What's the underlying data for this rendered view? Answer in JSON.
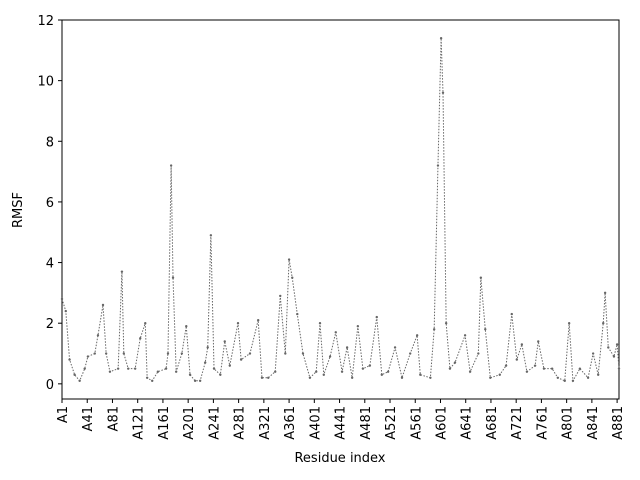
{
  "chart_data": {
    "type": "line",
    "xlabel": "Residue index",
    "ylabel": "RMSF",
    "x": [
      1,
      7,
      13,
      21,
      29,
      37,
      42,
      53,
      58,
      66,
      71,
      77,
      90,
      96,
      99,
      106,
      117,
      125,
      133,
      136,
      144,
      153,
      166,
      169,
      174,
      177,
      182,
      191,
      198,
      204,
      212,
      220,
      228,
      232,
      237,
      242,
      252,
      259,
      267,
      280,
      285,
      299,
      312,
      318,
      328,
      339,
      347,
      355,
      361,
      366,
      374,
      383,
      394,
      404,
      410,
      416,
      426,
      435,
      445,
      453,
      461,
      470,
      478,
      489,
      500,
      508,
      518,
      529,
      540,
      553,
      564,
      569,
      585,
      591,
      597,
      602,
      605,
      610,
      616,
      624,
      640,
      648,
      661,
      665,
      672,
      680,
      695,
      705,
      714,
      722,
      730,
      738,
      751,
      756,
      765,
      778,
      787,
      798,
      805,
      811,
      822,
      835,
      843,
      851,
      859,
      862,
      867,
      876,
      881,
      884
    ],
    "series": [
      {
        "name": "RMSF",
        "color": "#666666",
        "values": [
          2.8,
          2.4,
          0.8,
          0.3,
          0.1,
          0.5,
          0.9,
          1.0,
          1.6,
          2.6,
          1.0,
          0.4,
          0.5,
          3.7,
          1.0,
          0.5,
          0.5,
          1.5,
          2.0,
          0.2,
          0.1,
          0.4,
          0.5,
          1.0,
          7.2,
          3.5,
          0.4,
          1.0,
          1.9,
          0.3,
          0.1,
          0.1,
          0.7,
          1.2,
          4.9,
          0.5,
          0.3,
          1.4,
          0.6,
          2.0,
          0.8,
          1.0,
          2.1,
          0.2,
          0.2,
          0.4,
          2.9,
          1.0,
          4.1,
          3.5,
          2.3,
          1.0,
          0.2,
          0.4,
          2.0,
          0.3,
          0.9,
          1.7,
          0.4,
          1.2,
          0.2,
          1.9,
          0.5,
          0.6,
          2.2,
          0.3,
          0.4,
          1.2,
          0.2,
          1.0,
          1.6,
          0.3,
          0.2,
          1.8,
          7.2,
          11.4,
          9.6,
          2.0,
          0.5,
          0.7,
          1.6,
          0.4,
          1.0,
          3.5,
          1.8,
          0.2,
          0.3,
          0.6,
          2.3,
          0.8,
          1.3,
          0.4,
          0.6,
          1.4,
          0.5,
          0.5,
          0.2,
          0.1,
          2.0,
          0.1,
          0.5,
          0.2,
          1.0,
          0.3,
          2.0,
          3.0,
          1.2,
          0.9,
          1.3,
          0.5
        ]
      }
    ],
    "xlim": [
      1,
      884
    ],
    "ylim": [
      -0.5,
      12
    ],
    "xticks": [
      {
        "value": 1,
        "label": "A1"
      },
      {
        "value": 41,
        "label": "A41"
      },
      {
        "value": 81,
        "label": "A81"
      },
      {
        "value": 121,
        "label": "A121"
      },
      {
        "value": 161,
        "label": "A161"
      },
      {
        "value": 201,
        "label": "A201"
      },
      {
        "value": 241,
        "label": "A241"
      },
      {
        "value": 281,
        "label": "A281"
      },
      {
        "value": 321,
        "label": "A321"
      },
      {
        "value": 361,
        "label": "A361"
      },
      {
        "value": 401,
        "label": "A401"
      },
      {
        "value": 441,
        "label": "A441"
      },
      {
        "value": 481,
        "label": "A481"
      },
      {
        "value": 521,
        "label": "A521"
      },
      {
        "value": 561,
        "label": "A561"
      },
      {
        "value": 601,
        "label": "A601"
      },
      {
        "value": 641,
        "label": "A641"
      },
      {
        "value": 681,
        "label": "A681"
      },
      {
        "value": 721,
        "label": "A721"
      },
      {
        "value": 761,
        "label": "A761"
      },
      {
        "value": 801,
        "label": "A801"
      },
      {
        "value": 841,
        "label": "A841"
      },
      {
        "value": 881,
        "label": "A881"
      }
    ],
    "yticks": [
      0,
      2,
      4,
      6,
      8,
      10,
      12
    ]
  }
}
